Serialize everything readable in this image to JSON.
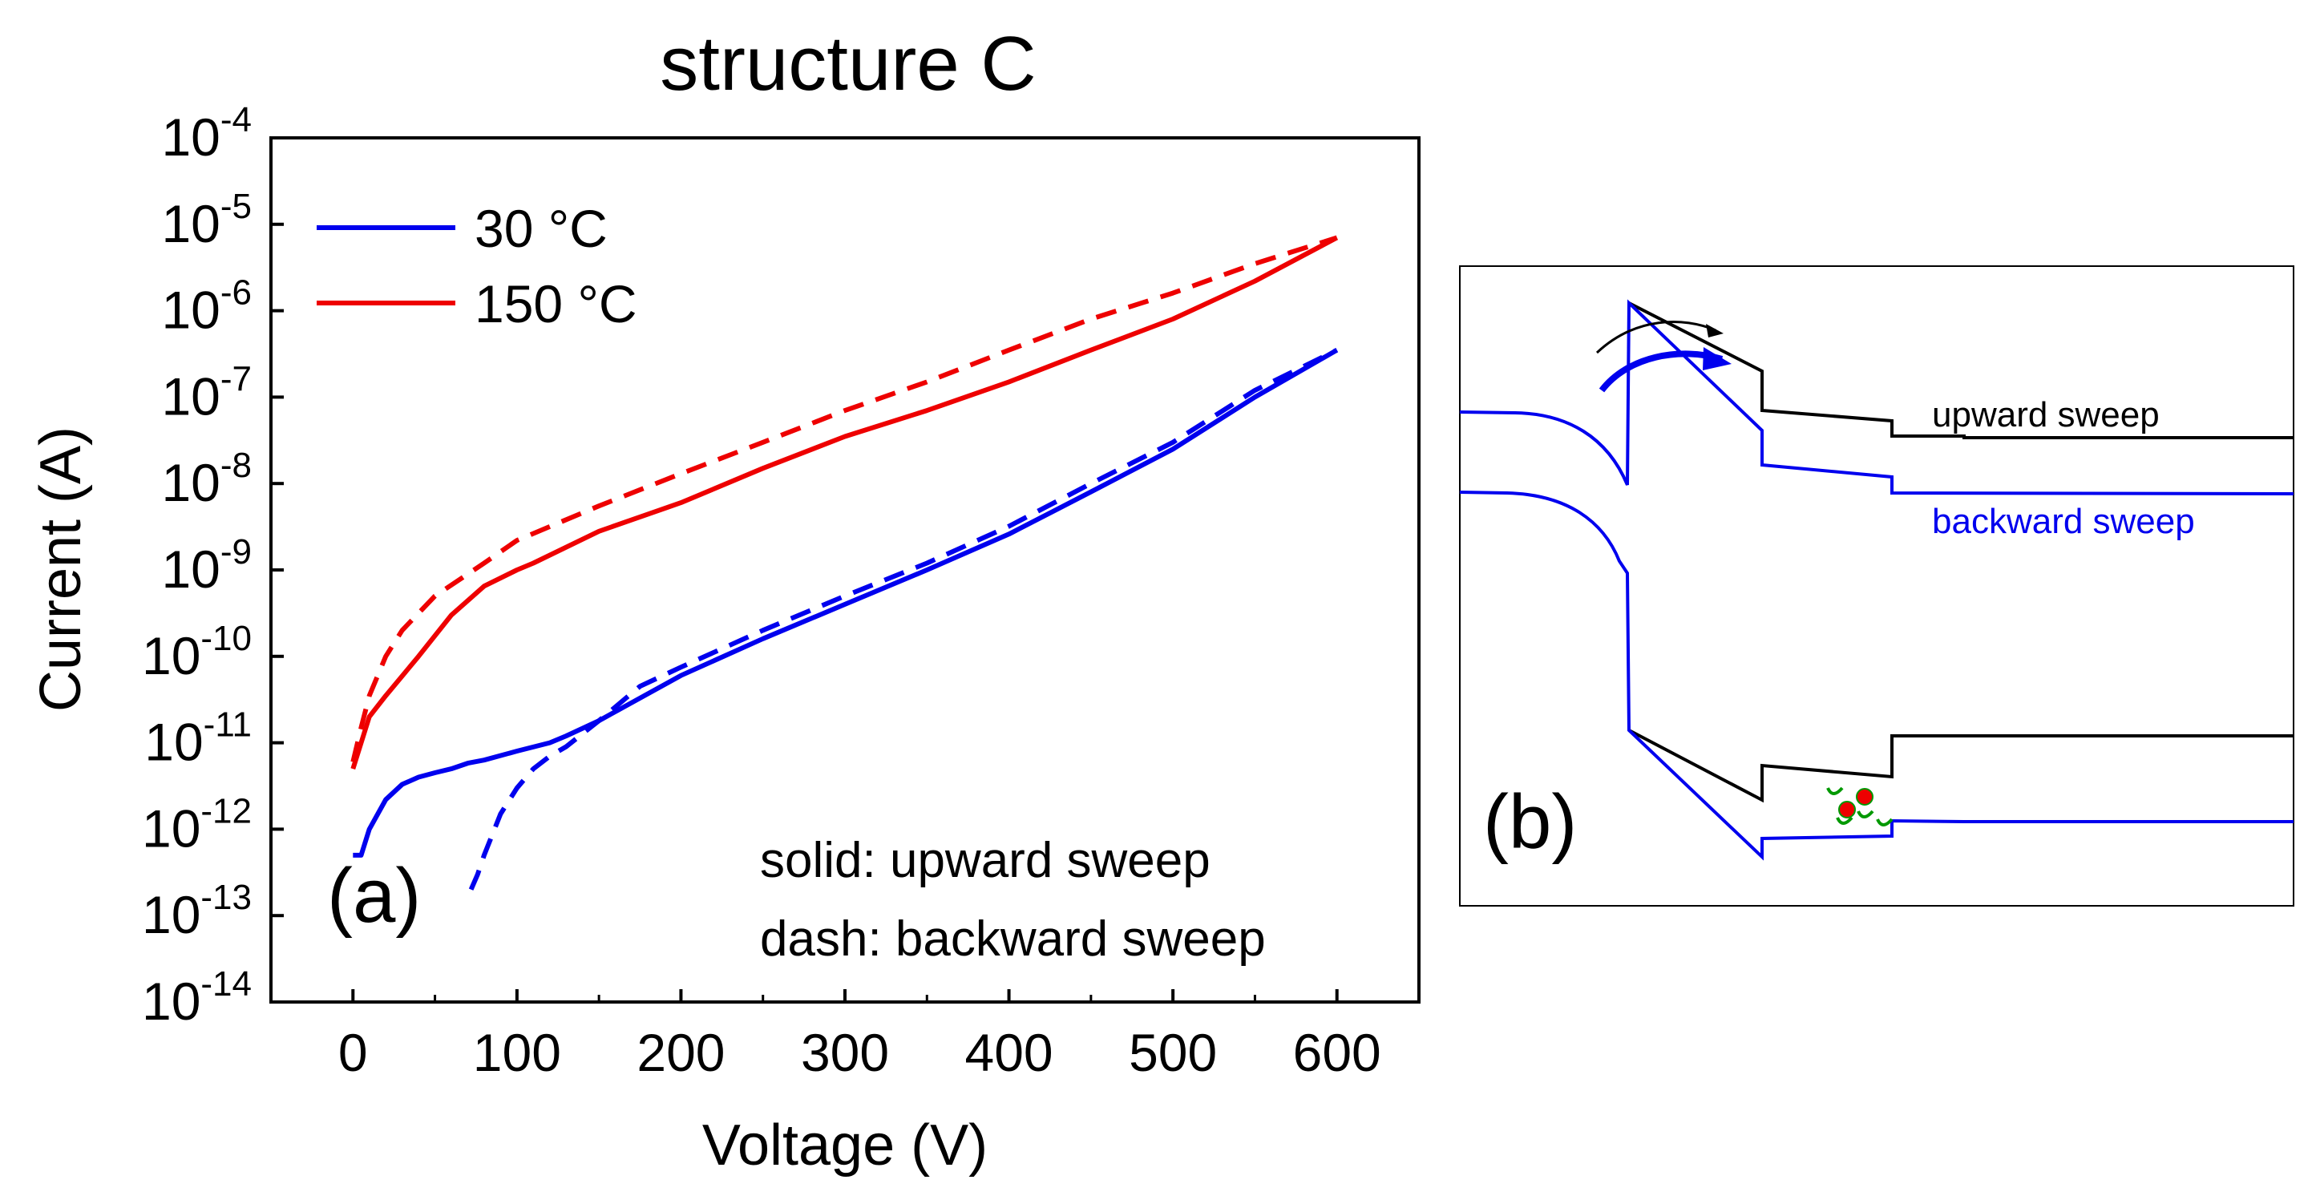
{
  "chart_data": [
    {
      "type": "line",
      "title": "structure C",
      "panel_label": "(a)",
      "xlabel": "Voltage (V)",
      "ylabel": "Current (A)",
      "yscale": "log",
      "xlim": [
        -50,
        650
      ],
      "ylim_exponent": [
        -14,
        -4
      ],
      "x_ticks": [
        0,
        100,
        200,
        300,
        400,
        500,
        600
      ],
      "x_tick_labels": [
        "0",
        "100",
        "200",
        "300",
        "400",
        "500",
        "600"
      ],
      "y_ticks": [
        -14,
        -13,
        -12,
        -11,
        -10,
        -9,
        -8,
        -7,
        -6,
        -5,
        -4
      ],
      "y_tick_base": "10",
      "y_tick_exponents": [
        "-14",
        "-13",
        "-12",
        "-11",
        "-10",
        "-9",
        "-8",
        "-7",
        "-6",
        "-5",
        "-4"
      ],
      "legend": [
        {
          "label": "30 °C",
          "color": "#0000ee"
        },
        {
          "label": "150 °C",
          "color": "#ee0000"
        }
      ],
      "annotations": [
        "solid: upward sweep",
        "dash: backward sweep"
      ],
      "series": [
        {
          "name": "30 °C upward sweep",
          "style": "solid",
          "color": "#0000ee",
          "x": [
            0,
            5,
            10,
            20,
            30,
            40,
            50,
            60,
            70,
            80,
            100,
            120,
            130,
            150,
            200,
            250,
            300,
            350,
            400,
            450,
            500,
            550,
            600
          ],
          "y": [
            5e-13,
            5e-13,
            1e-12,
            2.2e-12,
            3.3e-12,
            4e-12,
            4.5e-12,
            5e-12,
            5.8e-12,
            6.3e-12,
            8e-12,
            1e-11,
            1.2e-11,
            1.8e-11,
            6e-11,
            1.6e-10,
            4e-10,
            1e-09,
            2.6e-09,
            8e-09,
            2.5e-08,
            1e-07,
            3.5e-07
          ]
        },
        {
          "name": "30 °C backward sweep",
          "style": "dashed",
          "color": "#0000ee",
          "x": [
            72,
            76,
            80,
            90,
            100,
            110,
            120,
            130,
            150,
            175,
            200,
            250,
            300,
            350,
            400,
            450,
            500,
            550,
            600
          ],
          "y": [
            2e-13,
            3e-13,
            5e-13,
            1.5e-12,
            3e-12,
            5e-12,
            7e-12,
            9e-12,
            1.8e-11,
            4.5e-11,
            7.5e-11,
            2e-10,
            5e-10,
            1.2e-09,
            3.2e-09,
            1e-08,
            3e-08,
            1.2e-07,
            3.5e-07
          ]
        },
        {
          "name": "150 °C upward sweep",
          "style": "solid",
          "color": "#ee0000",
          "x": [
            0,
            5,
            10,
            20,
            40,
            60,
            80,
            100,
            110,
            150,
            200,
            250,
            300,
            350,
            400,
            450,
            500,
            550,
            600
          ],
          "y": [
            5e-12,
            1e-11,
            2e-11,
            3.5e-11,
            1e-10,
            3e-10,
            6.5e-10,
            1e-09,
            1.2e-09,
            2.8e-09,
            6e-09,
            1.5e-08,
            3.5e-08,
            7e-08,
            1.5e-07,
            3.5e-07,
            8e-07,
            2.2e-06,
            7e-06
          ]
        },
        {
          "name": "150 °C backward sweep",
          "style": "dashed",
          "color": "#ee0000",
          "x": [
            0,
            5,
            10,
            20,
            30,
            50,
            80,
            100,
            150,
            200,
            250,
            300,
            350,
            400,
            450,
            500,
            550,
            600
          ],
          "y": [
            6e-12,
            1.5e-11,
            3.5e-11,
            1e-10,
            2e-10,
            5e-10,
            1.2e-09,
            2.2e-09,
            5.5e-09,
            1.3e-08,
            3e-08,
            7e-08,
            1.5e-07,
            3.5e-07,
            8e-07,
            1.6e-06,
            3.5e-06,
            7e-06
          ]
        }
      ]
    },
    {
      "type": "band-diagram",
      "panel_label": "(b)",
      "labels": [
        {
          "text": "upward sweep",
          "color": "#000000"
        },
        {
          "text": "backward sweep",
          "color": "#0000ee"
        }
      ]
    }
  ]
}
